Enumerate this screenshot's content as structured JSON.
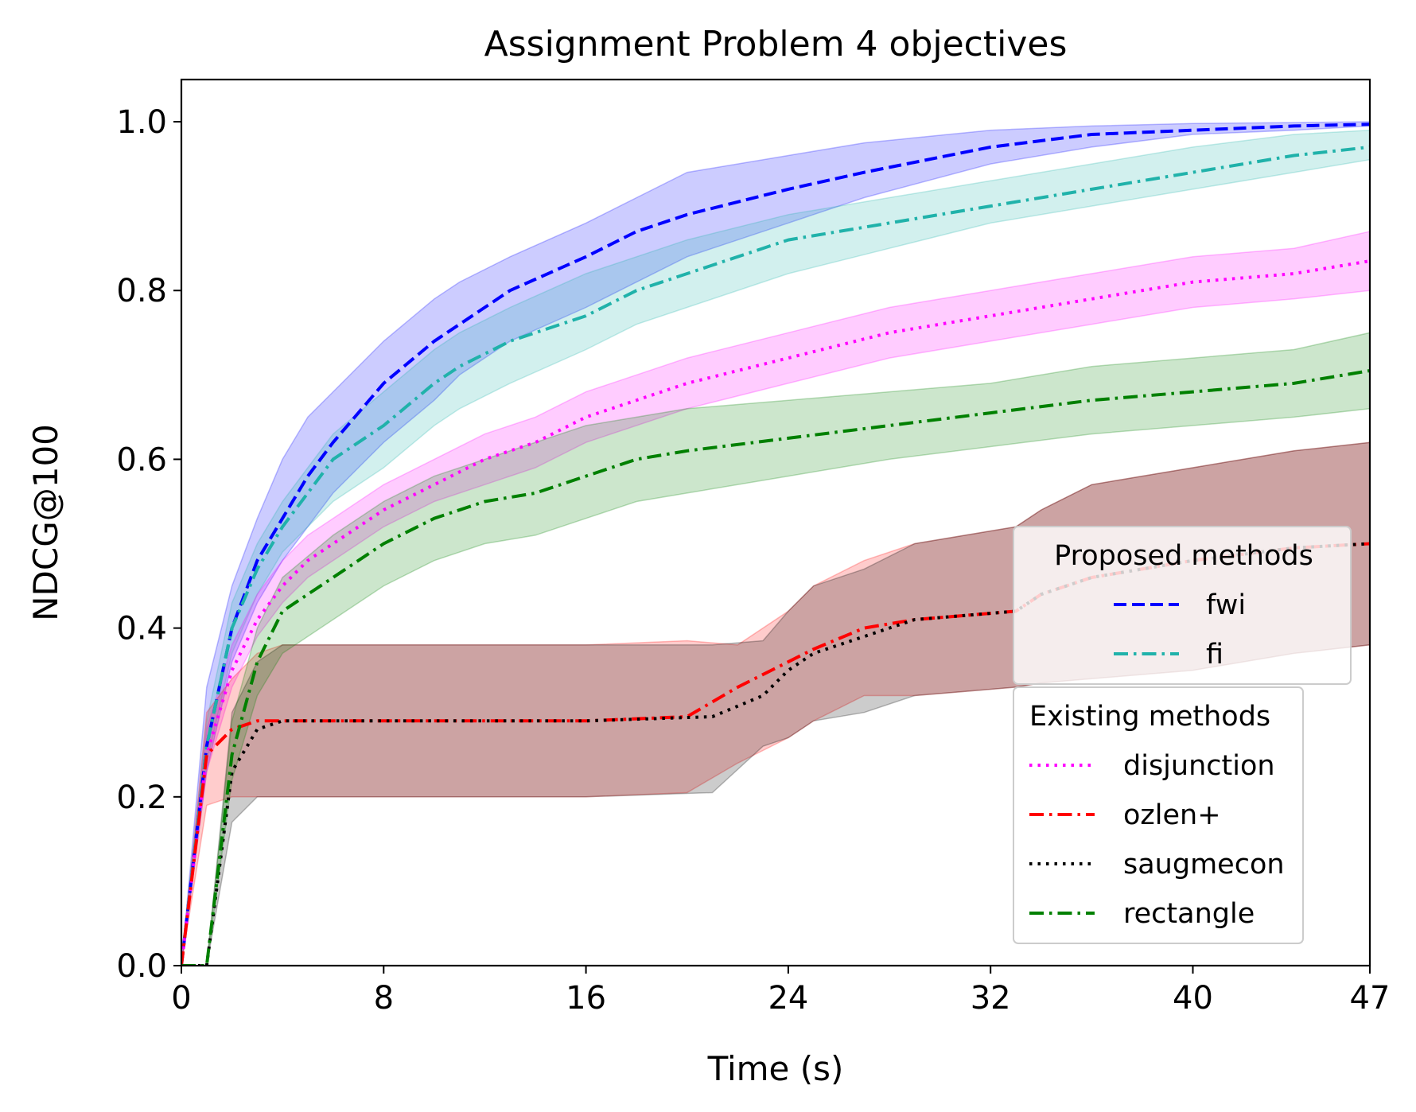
{
  "chart_data": {
    "type": "line",
    "title": "Assignment Problem 4 objectives",
    "xlabel": "Time (s)",
    "ylabel": "NDCG@100",
    "xlim": [
      0,
      47
    ],
    "ylim": [
      0,
      1.05
    ],
    "xticks": [
      0,
      8,
      16,
      24,
      32,
      40,
      47
    ],
    "yticks": [
      0.0,
      0.2,
      0.4,
      0.6,
      0.8,
      1.0
    ],
    "xtick_labels": [
      "0",
      "8",
      "16",
      "24",
      "32",
      "40",
      "47"
    ],
    "ytick_labels": [
      "0.0",
      "0.2",
      "0.4",
      "0.6",
      "0.8",
      "1.0"
    ],
    "grid": false,
    "legend_placement": "lower-right",
    "legend_groups": [
      {
        "title": "Proposed methods",
        "series": [
          "fwi",
          "fi"
        ]
      },
      {
        "title": "Existing methods",
        "series": [
          "disjunction",
          "ozlen+",
          "saugmecon",
          "rectangle"
        ]
      }
    ],
    "series": [
      {
        "name": "fwi",
        "color": "#0000ff",
        "dash": "dashed",
        "x": [
          0,
          1,
          2,
          3,
          4,
          5,
          6,
          8,
          10,
          11,
          13,
          16,
          18,
          20,
          24,
          27,
          32,
          36,
          40,
          44,
          47
        ],
        "values": [
          0,
          0.26,
          0.4,
          0.48,
          0.53,
          0.58,
          0.62,
          0.69,
          0.74,
          0.76,
          0.8,
          0.84,
          0.87,
          0.89,
          0.92,
          0.94,
          0.97,
          0.985,
          0.99,
          0.995,
          0.997
        ],
        "lower": [
          0,
          0.23,
          0.36,
          0.43,
          0.48,
          0.52,
          0.56,
          0.62,
          0.67,
          0.7,
          0.74,
          0.78,
          0.81,
          0.84,
          0.88,
          0.91,
          0.95,
          0.97,
          0.985,
          0.99,
          0.995
        ],
        "upper": [
          0,
          0.33,
          0.45,
          0.53,
          0.6,
          0.65,
          0.68,
          0.74,
          0.79,
          0.81,
          0.84,
          0.88,
          0.91,
          0.94,
          0.96,
          0.975,
          0.99,
          0.995,
          0.998,
          0.999,
          1.0
        ]
      },
      {
        "name": "fi",
        "color": "#20b2aa",
        "dash": "dashdot",
        "x": [
          0,
          1,
          2,
          3,
          4,
          5,
          6,
          8,
          10,
          11,
          13,
          16,
          18,
          20,
          24,
          28,
          32,
          36,
          40,
          44,
          47
        ],
        "values": [
          0,
          0.26,
          0.4,
          0.47,
          0.52,
          0.56,
          0.6,
          0.64,
          0.69,
          0.71,
          0.74,
          0.77,
          0.8,
          0.82,
          0.86,
          0.88,
          0.9,
          0.92,
          0.94,
          0.96,
          0.97
        ],
        "lower": [
          0,
          0.24,
          0.37,
          0.44,
          0.49,
          0.52,
          0.55,
          0.59,
          0.64,
          0.66,
          0.69,
          0.73,
          0.76,
          0.78,
          0.82,
          0.85,
          0.88,
          0.9,
          0.92,
          0.94,
          0.955
        ],
        "upper": [
          0,
          0.29,
          0.43,
          0.5,
          0.55,
          0.59,
          0.63,
          0.68,
          0.73,
          0.75,
          0.78,
          0.82,
          0.84,
          0.86,
          0.89,
          0.91,
          0.93,
          0.95,
          0.97,
          0.985,
          0.99
        ]
      },
      {
        "name": "disjunction",
        "color": "#ff00ff",
        "dash": "dotted",
        "x": [
          0,
          1,
          2,
          3,
          4,
          5,
          6,
          8,
          10,
          12,
          14,
          16,
          20,
          24,
          28,
          32,
          36,
          40,
          44,
          47
        ],
        "values": [
          0,
          0.25,
          0.35,
          0.41,
          0.45,
          0.48,
          0.5,
          0.54,
          0.57,
          0.6,
          0.62,
          0.65,
          0.69,
          0.72,
          0.75,
          0.77,
          0.79,
          0.81,
          0.82,
          0.835
        ],
        "lower": [
          0,
          0.23,
          0.33,
          0.39,
          0.43,
          0.46,
          0.48,
          0.52,
          0.55,
          0.57,
          0.59,
          0.62,
          0.66,
          0.69,
          0.72,
          0.74,
          0.76,
          0.78,
          0.79,
          0.8
        ],
        "upper": [
          0,
          0.28,
          0.38,
          0.44,
          0.48,
          0.51,
          0.53,
          0.57,
          0.6,
          0.63,
          0.65,
          0.68,
          0.72,
          0.75,
          0.78,
          0.8,
          0.82,
          0.84,
          0.85,
          0.87
        ]
      },
      {
        "name": "ozlen+",
        "color": "#ff0000",
        "dash": "dashdot",
        "x": [
          0,
          1,
          2,
          3,
          4,
          8,
          16,
          20,
          22,
          24,
          25,
          27,
          29,
          31,
          33,
          34,
          36,
          38,
          40,
          44,
          47
        ],
        "values": [
          0,
          0.25,
          0.28,
          0.29,
          0.29,
          0.29,
          0.29,
          0.295,
          0.33,
          0.36,
          0.375,
          0.4,
          0.41,
          0.415,
          0.42,
          0.44,
          0.46,
          0.47,
          0.48,
          0.495,
          0.5
        ],
        "lower": [
          0,
          0.19,
          0.2,
          0.2,
          0.2,
          0.2,
          0.2,
          0.205,
          0.24,
          0.27,
          0.29,
          0.32,
          0.32,
          0.325,
          0.33,
          0.335,
          0.34,
          0.345,
          0.35,
          0.37,
          0.38
        ],
        "upper": [
          0,
          0.3,
          0.34,
          0.37,
          0.38,
          0.38,
          0.38,
          0.385,
          0.38,
          0.42,
          0.45,
          0.48,
          0.5,
          0.51,
          0.52,
          0.54,
          0.57,
          0.58,
          0.59,
          0.61,
          0.62
        ]
      },
      {
        "name": "saugmecon",
        "color": "#000000",
        "dash": "dotted",
        "x": [
          0,
          1,
          2,
          3,
          4,
          8,
          16,
          21,
          23,
          24,
          25,
          27,
          29,
          31,
          33,
          34,
          36,
          38,
          40,
          44,
          47
        ],
        "values": [
          0,
          0,
          0.23,
          0.28,
          0.29,
          0.29,
          0.29,
          0.295,
          0.32,
          0.35,
          0.37,
          0.39,
          0.41,
          0.415,
          0.42,
          0.44,
          0.46,
          0.47,
          0.48,
          0.495,
          0.5
        ],
        "lower": [
          0,
          0,
          0.17,
          0.2,
          0.2,
          0.2,
          0.2,
          0.205,
          0.26,
          0.27,
          0.29,
          0.3,
          0.32,
          0.325,
          0.33,
          0.335,
          0.34,
          0.345,
          0.35,
          0.37,
          0.38
        ],
        "upper": [
          0,
          0,
          0.3,
          0.36,
          0.38,
          0.38,
          0.38,
          0.38,
          0.385,
          0.42,
          0.45,
          0.47,
          0.5,
          0.51,
          0.52,
          0.54,
          0.57,
          0.58,
          0.59,
          0.61,
          0.62
        ]
      },
      {
        "name": "rectangle",
        "color": "#008000",
        "dash": "dashdot",
        "x": [
          0,
          1,
          2,
          3,
          4,
          6,
          8,
          10,
          12,
          14,
          16,
          18,
          20,
          24,
          28,
          32,
          36,
          40,
          44,
          47
        ],
        "values": [
          0,
          0,
          0.25,
          0.36,
          0.42,
          0.46,
          0.5,
          0.53,
          0.55,
          0.56,
          0.58,
          0.6,
          0.61,
          0.625,
          0.64,
          0.655,
          0.67,
          0.68,
          0.69,
          0.705
        ],
        "lower": [
          0,
          0,
          0.22,
          0.32,
          0.37,
          0.41,
          0.45,
          0.48,
          0.5,
          0.51,
          0.53,
          0.55,
          0.56,
          0.58,
          0.6,
          0.615,
          0.63,
          0.64,
          0.65,
          0.66
        ],
        "upper": [
          0,
          0,
          0.29,
          0.4,
          0.46,
          0.51,
          0.55,
          0.58,
          0.6,
          0.62,
          0.64,
          0.65,
          0.66,
          0.67,
          0.68,
          0.69,
          0.71,
          0.72,
          0.73,
          0.75
        ]
      }
    ]
  }
}
